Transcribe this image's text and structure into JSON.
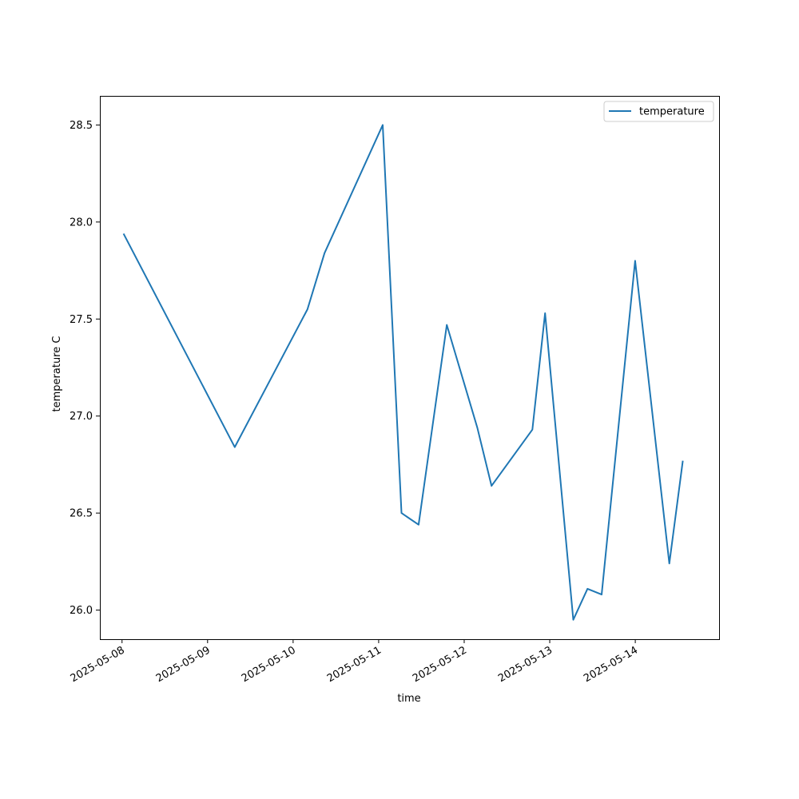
{
  "chart_data": {
    "type": "line",
    "title": "",
    "xlabel": "time",
    "ylabel": "temperature C",
    "xlim": [
      "2025-05-07 17:47",
      "2025-05-14 23:31"
    ],
    "ylim": [
      25.85,
      28.65
    ],
    "x_tick_labels": [
      "2025-05-08",
      "2025-05-09",
      "2025-05-10",
      "2025-05-11",
      "2025-05-12",
      "2025-05-13",
      "2025-05-14"
    ],
    "y_tick_labels": [
      "26.0",
      "26.5",
      "27.0",
      "27.5",
      "28.0",
      "28.5"
    ],
    "y_ticks": [
      26.0,
      26.5,
      27.0,
      27.5,
      28.0,
      28.5
    ],
    "grid": false,
    "legend_position": "top-right",
    "series": [
      {
        "name": "temperature",
        "color": "#1f77b4",
        "x": [
          "2025-05-08 00:25",
          "2025-05-09 07:38",
          "2025-05-10 04:01",
          "2025-05-10 08:49",
          "2025-05-11 01:09",
          "2025-05-11 06:25",
          "2025-05-11 11:13",
          "2025-05-11 19:07",
          "2025-05-12 03:41",
          "2025-05-12 07:40",
          "2025-05-12 19:08",
          "2025-05-12 22:42",
          "2025-05-13 06:36",
          "2025-05-13 10:36",
          "2025-05-13 14:34",
          "2025-05-13 23:58",
          "2025-05-14 09:33",
          "2025-05-14 13:20"
        ],
        "values": [
          27.94,
          26.84,
          27.55,
          27.84,
          28.5,
          26.5,
          26.44,
          27.47,
          26.94,
          26.64,
          26.93,
          27.53,
          25.95,
          26.11,
          26.08,
          27.8,
          26.24,
          26.77
        ]
      }
    ]
  }
}
